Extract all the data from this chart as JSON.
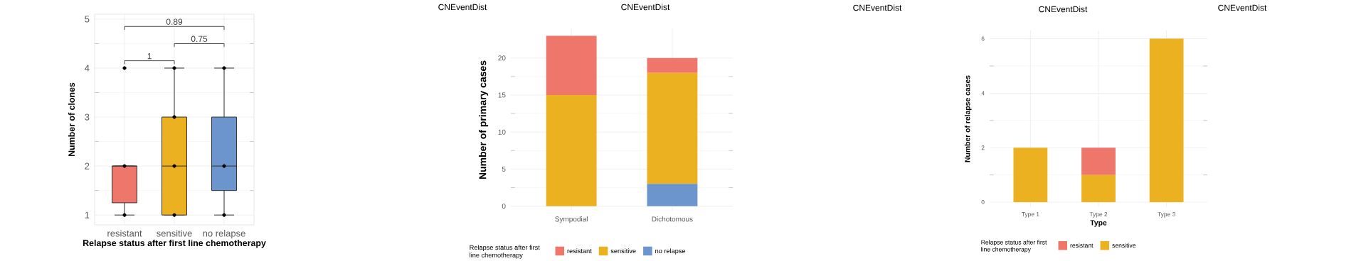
{
  "chart_data": [
    {
      "type": "box",
      "xlabel": "Relapse status after first line chemotherapy",
      "ylabel": "Number of clones",
      "categories": [
        "resistant",
        "sensitive",
        "no relapse"
      ],
      "boxes": [
        {
          "low": 1,
          "q1": 1.25,
          "median": 2,
          "q3": 2,
          "high": 2
        },
        {
          "low": 1,
          "q1": 1,
          "median": 2,
          "q3": 3,
          "high": 4
        },
        {
          "low": 1,
          "q1": 1.5,
          "median": 2,
          "q3": 3,
          "high": 4
        }
      ],
      "colors": [
        "#ee766b",
        "#ebb121",
        "#6c95cd"
      ],
      "series": [
        {
          "type": "scatter",
          "color": "#000000",
          "x": [
            "resistant",
            "resistant",
            "resistant",
            "sensitive",
            "sensitive",
            "sensitive",
            "sensitive",
            "no relapse",
            "no relapse",
            "no relapse"
          ],
          "values": [
            1,
            2,
            4,
            1,
            2,
            3,
            4,
            1,
            2,
            4
          ]
        }
      ],
      "marker": "circle",
      "annotations": [
        "1",
        "0.75",
        "0.89"
      ],
      "ylim": [
        0.8,
        5.1
      ],
      "yticks": [
        1,
        2,
        3,
        4,
        5
      ],
      "grid": true
    },
    {
      "type": "bar",
      "stacked": true,
      "ylabel": "Number of primary cases",
      "legend_title": "Relapse status after first line chemotherapy",
      "categories": [
        "Sympodial",
        "Dichotomous"
      ],
      "series": [
        {
          "name": "no relapse",
          "color": "#6c95cd",
          "values": [
            0,
            3
          ]
        },
        {
          "name": "sensitive",
          "color": "#ebb121",
          "values": [
            15,
            15
          ]
        },
        {
          "name": "resistant",
          "color": "#ee766b",
          "values": [
            8,
            2
          ]
        }
      ],
      "annotations": [
        "CNEventDist",
        "CNEventDist"
      ],
      "ylim": [
        -0.7,
        24
      ],
      "yticks": [
        0,
        5,
        10,
        15,
        20
      ],
      "grid": true,
      "legend": "bottom"
    },
    {
      "type": "bar",
      "stacked": true,
      "xlabel": "Type",
      "ylabel": "Number of relapse cases",
      "legend_title": "Relapse status after first line chemotherapy",
      "categories": [
        "Type 1",
        "Type 2",
        "Type 3"
      ],
      "series": [
        {
          "name": "sensitive",
          "color": "#ebb121",
          "values": [
            2,
            1,
            6
          ]
        },
        {
          "name": "resistant",
          "color": "#ee766b",
          "values": [
            0,
            1,
            0
          ]
        }
      ],
      "annotations": [
        "CNEventDist",
        "CNEventDist",
        "CNEventDist"
      ],
      "ylim": [
        -0.18,
        6.3
      ],
      "yticks": [
        0,
        2,
        4,
        6
      ],
      "grid": true,
      "legend": "bottom"
    }
  ]
}
